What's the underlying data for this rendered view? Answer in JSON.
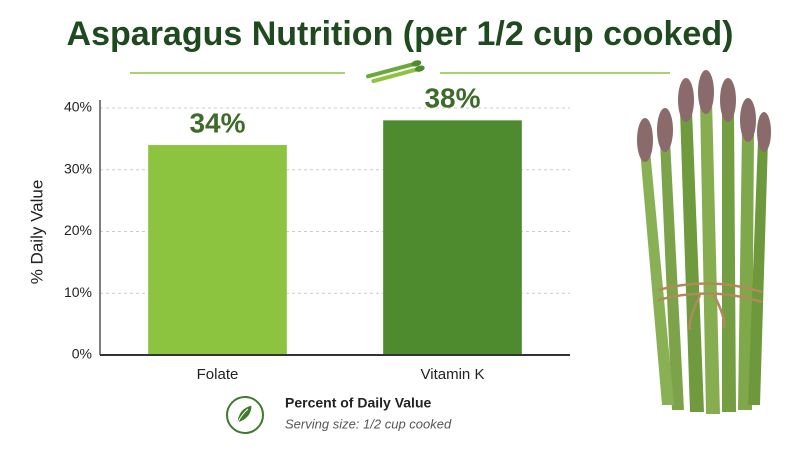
{
  "chart_data": {
    "type": "bar",
    "title": "Asparagus Nutrition (per 1/2 cup cooked)",
    "y_label": "% Daily Value",
    "categories": [
      "Folate",
      "Vitamin K"
    ],
    "values": [
      34,
      38
    ],
    "value_labels": [
      "34%",
      "38%"
    ],
    "colors": [
      "#8cc43f",
      "#4d8b2e"
    ],
    "ylim": [
      0,
      40
    ],
    "yticks": [
      {
        "value": 0,
        "label": "0%"
      },
      {
        "value": 10,
        "label": "10%"
      },
      {
        "value": 20,
        "label": "20%"
      },
      {
        "value": 30,
        "label": "30%"
      },
      {
        "value": 40,
        "label": "40%"
      }
    ],
    "grid": true,
    "legend": {
      "title": "Percent of Daily Value",
      "subtitle": "Serving size: 1/2 cup cooked"
    }
  }
}
